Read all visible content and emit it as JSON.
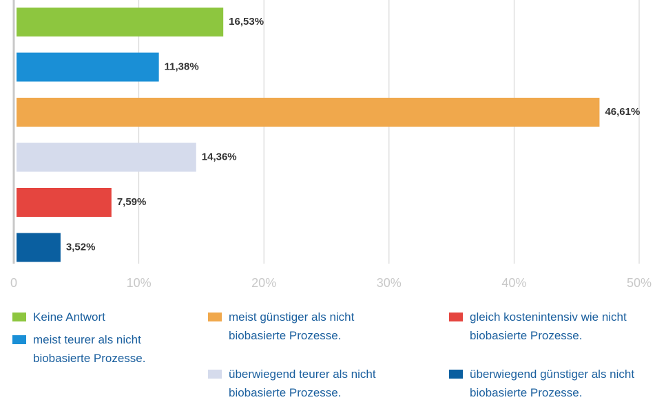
{
  "chart_data": {
    "type": "hbar",
    "categories": [
      "Keine Antwort",
      "meist teurer als nicht biobasierte Prozesse.",
      "meist günstiger als nicht biobasierte Prozesse.",
      "überwiegend teurer als nicht biobasierte Prozesse.",
      "gleich kostenintensiv wie nicht biobasierte Prozesse.",
      "überwiegend günstiger als nicht biobasierte Prozesse."
    ],
    "values": [
      16.53,
      11.38,
      46.61,
      14.36,
      7.59,
      3.52
    ],
    "value_labels": [
      "16,53%",
      "11,38%",
      "46,61%",
      "14,36%",
      "7,59%",
      "3,52%"
    ],
    "colors": [
      "#8dc63f",
      "#1a8fd6",
      "#f0a84c",
      "#d5dbec",
      "#e5453f",
      "#0a5fa0"
    ],
    "xlim": [
      0,
      50
    ],
    "xticks": [
      0,
      {
        "value": 10,
        "label": "10%"
      },
      {
        "value": 20,
        "label": "20%"
      },
      {
        "value": 30,
        "label": "30%"
      },
      {
        "value": 40,
        "label": "40%"
      },
      {
        "value": 50,
        "label": "50%"
      }
    ],
    "grid": true
  }
}
